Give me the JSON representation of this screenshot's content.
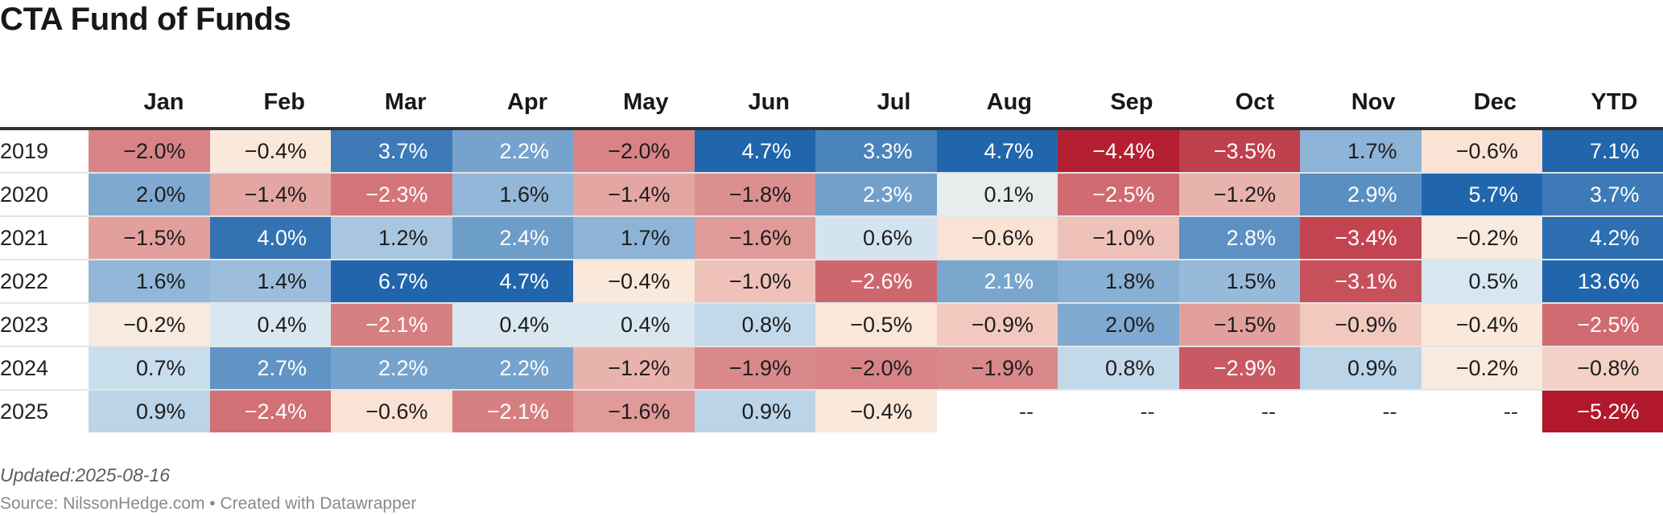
{
  "title": "CTA Fund of Funds",
  "footer": {
    "updated": "Updated:2025-08-16",
    "source": "Source: NilssonHedge.com • Created with Datawrapper"
  },
  "chart_data": {
    "type": "heatmap",
    "title": "CTA Fund of Funds",
    "columns": [
      "Jan",
      "Feb",
      "Mar",
      "Apr",
      "May",
      "Jun",
      "Jul",
      "Aug",
      "Sep",
      "Oct",
      "Nov",
      "Dec",
      "YTD"
    ],
    "rows": [
      {
        "year": "2019",
        "values": [
          "−2.0%",
          "−0.4%",
          "3.7%",
          "2.2%",
          "−2.0%",
          "4.7%",
          "3.3%",
          "4.7%",
          "−4.4%",
          "−3.5%",
          "1.7%",
          "−0.6%",
          "7.1%"
        ]
      },
      {
        "year": "2020",
        "values": [
          "2.0%",
          "−1.4%",
          "−2.3%",
          "1.6%",
          "−1.4%",
          "−1.8%",
          "2.3%",
          "0.1%",
          "−2.5%",
          "−1.2%",
          "2.9%",
          "5.7%",
          "3.7%"
        ]
      },
      {
        "year": "2021",
        "values": [
          "−1.5%",
          "4.0%",
          "1.2%",
          "2.4%",
          "1.7%",
          "−1.6%",
          "0.6%",
          "−0.6%",
          "−1.0%",
          "2.8%",
          "−3.4%",
          "−0.2%",
          "4.2%"
        ]
      },
      {
        "year": "2022",
        "values": [
          "1.6%",
          "1.4%",
          "6.7%",
          "4.7%",
          "−0.4%",
          "−1.0%",
          "−2.6%",
          "2.1%",
          "1.8%",
          "1.5%",
          "−3.1%",
          "0.5%",
          "13.6%"
        ]
      },
      {
        "year": "2023",
        "values": [
          "−0.2%",
          "0.4%",
          "−2.1%",
          "0.4%",
          "0.4%",
          "0.8%",
          "−0.5%",
          "−0.9%",
          "2.0%",
          "−1.5%",
          "−0.9%",
          "−0.4%",
          "−2.5%"
        ]
      },
      {
        "year": "2024",
        "values": [
          "0.7%",
          "2.7%",
          "2.2%",
          "2.2%",
          "−1.2%",
          "−1.9%",
          "−2.0%",
          "−1.9%",
          "0.8%",
          "−2.9%",
          "0.9%",
          "−0.2%",
          "−0.8%"
        ]
      },
      {
        "year": "2025",
        "values": [
          "0.9%",
          "−2.4%",
          "−0.6%",
          "−2.1%",
          "−1.6%",
          "0.9%",
          "−0.4%",
          "--",
          "--",
          "--",
          "--",
          "--",
          "−5.2%"
        ]
      }
    ],
    "colors": {
      "negative_strong": "#b2182b",
      "negative_light": "#fbe6d8",
      "neutral": "#f5f1ea",
      "positive_light": "#d4e6f1",
      "positive_strong": "#2166ac"
    }
  }
}
